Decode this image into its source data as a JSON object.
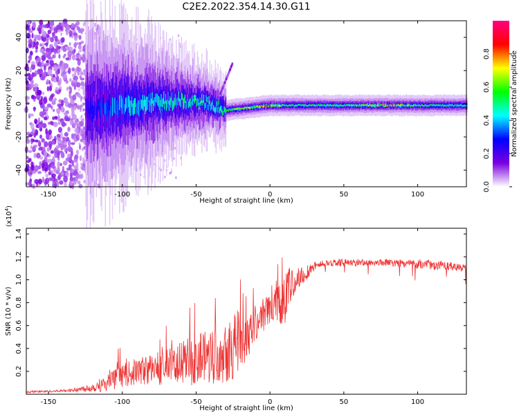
{
  "title": "C2E2.2022.354.14.30.G11",
  "chart_data": [
    {
      "type": "heatmap",
      "xlabel": "Height of straight line (km)",
      "ylabel": "Frequency (Hz)",
      "xlim": [
        -165,
        133
      ],
      "ylim": [
        -50,
        50
      ],
      "xticks": [
        -150,
        -100,
        -50,
        0,
        50,
        100
      ],
      "yticks": [
        -40,
        -20,
        0,
        20,
        40
      ],
      "colorbar": {
        "label": "Normalized spectral amplitude",
        "range": [
          0,
          1
        ],
        "ticks": [
          "0.0",
          "0.2",
          "0.4",
          "0.6",
          "0.8"
        ],
        "tick_values": [
          0.0,
          0.2,
          0.4,
          0.6,
          0.8
        ],
        "colors": [
          "#ffffff",
          "#7a00e0",
          "#0000ff",
          "#00ffff",
          "#00ff00",
          "#ffff00",
          "#ff0000",
          "#ff0080"
        ]
      },
      "ridge": {
        "description_points_x": [
          -120,
          -100,
          -80,
          -60,
          -40,
          -30,
          -20,
          -10,
          0,
          10,
          20,
          50,
          80,
          100,
          133
        ],
        "center_freq": [
          -3,
          -1,
          1,
          2,
          0,
          -4,
          -3,
          -2,
          -1,
          -1,
          -1,
          -1,
          -1,
          -1,
          -1
        ],
        "amplitude": [
          0.3,
          0.45,
          0.5,
          0.5,
          0.55,
          0.6,
          0.75,
          0.7,
          0.9,
          0.6,
          0.6,
          0.6,
          0.85,
          0.6,
          0.55
        ]
      }
    },
    {
      "type": "line",
      "xlabel": "Height of straight line (km)",
      "ylabel": "SNR (10 * v/v)",
      "yscale_label": "(x10",
      "yscale_exp": "4",
      "yscale_close": ")",
      "xlim": [
        -165,
        133
      ],
      "ylim": [
        0,
        1.45
      ],
      "xticks": [
        -150,
        -100,
        -50,
        0,
        50,
        100
      ],
      "yticks": [
        0.2,
        0.4,
        0.6,
        0.8,
        1.0,
        1.2,
        1.4
      ],
      "line_color": "#ee3333",
      "series": [
        {
          "x": [
            -165,
            -140,
            -130,
            -120,
            -110,
            -100,
            -90,
            -80,
            -70,
            -60,
            -50,
            -40,
            -30,
            -20,
            -10,
            0,
            5,
            10,
            15,
            20,
            30,
            40,
            60,
            80,
            100,
            120,
            133
          ],
          "y": [
            0.02,
            0.03,
            0.04,
            0.06,
            0.1,
            0.16,
            0.2,
            0.22,
            0.24,
            0.27,
            0.3,
            0.36,
            0.4,
            0.46,
            0.62,
            0.75,
            0.82,
            0.88,
            0.95,
            1.02,
            1.12,
            1.15,
            1.15,
            1.15,
            1.14,
            1.12,
            1.1
          ],
          "noise": [
            0.01,
            0.01,
            0.02,
            0.04,
            0.08,
            0.1,
            0.12,
            0.14,
            0.16,
            0.2,
            0.22,
            0.28,
            0.3,
            0.3,
            0.16,
            0.14,
            0.2,
            0.3,
            0.14,
            0.1,
            0.04,
            0.03,
            0.03,
            0.03,
            0.04,
            0.04,
            0.03
          ]
        }
      ]
    }
  ]
}
